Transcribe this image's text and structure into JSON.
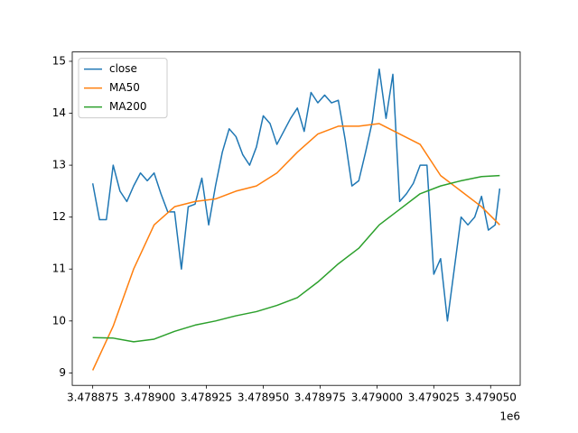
{
  "chart_data": {
    "type": "line",
    "xlim": [
      3478866,
      3479063
    ],
    "ylim": [
      8.76,
      15.18
    ],
    "xticks": [
      {
        "value": 3478875,
        "label": "3.478875"
      },
      {
        "value": 3478900,
        "label": "3.478900"
      },
      {
        "value": 3478925,
        "label": "3.478925"
      },
      {
        "value": 3478950,
        "label": "3.478950"
      },
      {
        "value": 3478975,
        "label": "3.478975"
      },
      {
        "value": 3479000,
        "label": "3.479000"
      },
      {
        "value": 3479025,
        "label": "3.479025"
      },
      {
        "value": 3479050,
        "label": "3.479050"
      }
    ],
    "yticks": [
      9,
      10,
      11,
      12,
      13,
      14,
      15
    ],
    "x_offset_label": "1e6",
    "grid": false,
    "legend": "upper left",
    "series": [
      {
        "name": "close",
        "color": "#1f77b4",
        "x": [
          3478875,
          3478878,
          3478881,
          3478884,
          3478887,
          3478890,
          3478893,
          3478896,
          3478899,
          3478902,
          3478905,
          3478908,
          3478911,
          3478914,
          3478917,
          3478920,
          3478923,
          3478926,
          3478929,
          3478932,
          3478935,
          3478938,
          3478941,
          3478944,
          3478947,
          3478950,
          3478953,
          3478956,
          3478959,
          3478962,
          3478965,
          3478968,
          3478971,
          3478974,
          3478977,
          3478980,
          3478983,
          3478986,
          3478989,
          3478992,
          3478995,
          3478998,
          3479001,
          3479004,
          3479007,
          3479010,
          3479013,
          3479016,
          3479019,
          3479022,
          3479025,
          3479028,
          3479031,
          3479034,
          3479037,
          3479040,
          3479043,
          3479046,
          3479049,
          3479052,
          3479054
        ],
        "values": [
          12.65,
          11.95,
          11.95,
          13.0,
          12.5,
          12.3,
          12.6,
          12.85,
          12.7,
          12.85,
          12.45,
          12.1,
          12.1,
          11.0,
          12.2,
          12.25,
          12.75,
          11.85,
          12.6,
          13.25,
          13.7,
          13.55,
          13.2,
          13.0,
          13.35,
          13.95,
          13.8,
          13.4,
          13.65,
          13.9,
          14.1,
          13.65,
          14.4,
          14.2,
          14.35,
          14.2,
          14.25,
          13.5,
          12.6,
          12.7,
          13.25,
          13.85,
          14.85,
          13.9,
          14.75,
          12.3,
          12.45,
          12.65,
          13.0,
          13.0,
          10.9,
          11.2,
          10.0,
          11.0,
          12.0,
          11.85,
          12.0,
          12.4,
          11.75,
          11.85,
          12.55
        ]
      },
      {
        "name": "MA50",
        "color": "#ff7f0e",
        "x": [
          3478875,
          3478884,
          3478893,
          3478902,
          3478911,
          3478920,
          3478929,
          3478938,
          3478947,
          3478956,
          3478965,
          3478974,
          3478983,
          3478992,
          3479001,
          3479010,
          3479019,
          3479028,
          3479037,
          3479046,
          3479054
        ],
        "values": [
          9.05,
          9.9,
          11.0,
          11.85,
          12.2,
          12.3,
          12.35,
          12.5,
          12.6,
          12.85,
          13.25,
          13.6,
          13.75,
          13.75,
          13.8,
          13.6,
          13.4,
          12.8,
          12.5,
          12.2,
          11.85
        ]
      },
      {
        "name": "MA200",
        "color": "#2ca02c",
        "x": [
          3478875,
          3478884,
          3478893,
          3478902,
          3478911,
          3478920,
          3478929,
          3478938,
          3478947,
          3478956,
          3478965,
          3478974,
          3478983,
          3478992,
          3479001,
          3479010,
          3479019,
          3479028,
          3479037,
          3479046,
          3479054
        ],
        "values": [
          9.68,
          9.67,
          9.6,
          9.65,
          9.8,
          9.92,
          10.0,
          10.1,
          10.18,
          10.3,
          10.45,
          10.75,
          11.1,
          11.4,
          11.85,
          12.15,
          12.45,
          12.6,
          12.7,
          12.78,
          12.8
        ]
      }
    ]
  }
}
